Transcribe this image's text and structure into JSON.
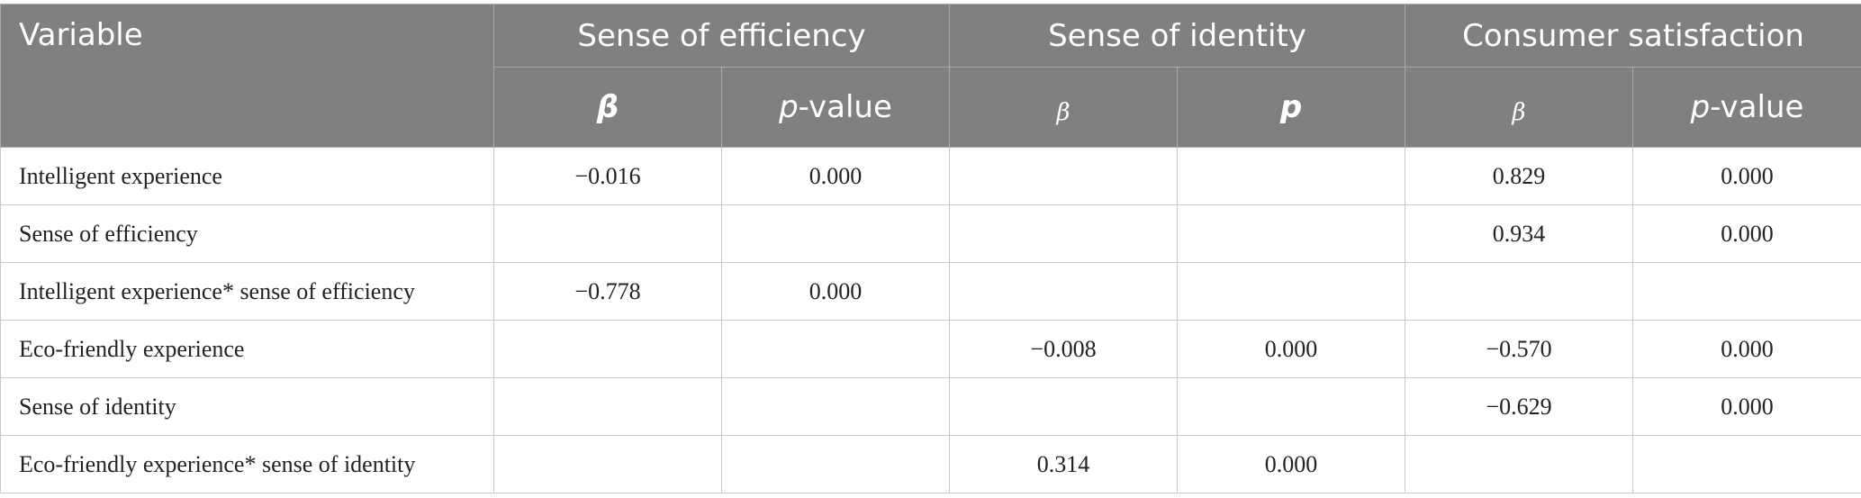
{
  "table": {
    "header": [
      "Variable",
      "Sense of efficiency",
      "Sense of identity",
      "Consumer satisfaction"
    ],
    "subheader": [
      "β",
      "p-value",
      "β",
      "p",
      "β",
      "p-value"
    ],
    "rows": [
      [
        "Intelligent experience",
        "−0.016",
        "0.000",
        null,
        null,
        "0.829",
        "0.000"
      ],
      [
        "Sense of efficiency",
        null,
        null,
        null,
        null,
        "0.934",
        "0.000"
      ],
      [
        "Intelligent experience* sense of efficiency",
        "−0.778",
        "0.000",
        null,
        null,
        null,
        null
      ],
      [
        "Eco-friendly experience",
        null,
        null,
        "−0.008",
        "0.000",
        "−0.570",
        "0.000"
      ],
      [
        "Sense of identity",
        null,
        null,
        null,
        null,
        "−0.629",
        "0.000"
      ],
      [
        "Eco-friendly experience* sense of identity",
        null,
        null,
        "0.314",
        "0.000",
        null,
        null
      ]
    ]
  }
}
